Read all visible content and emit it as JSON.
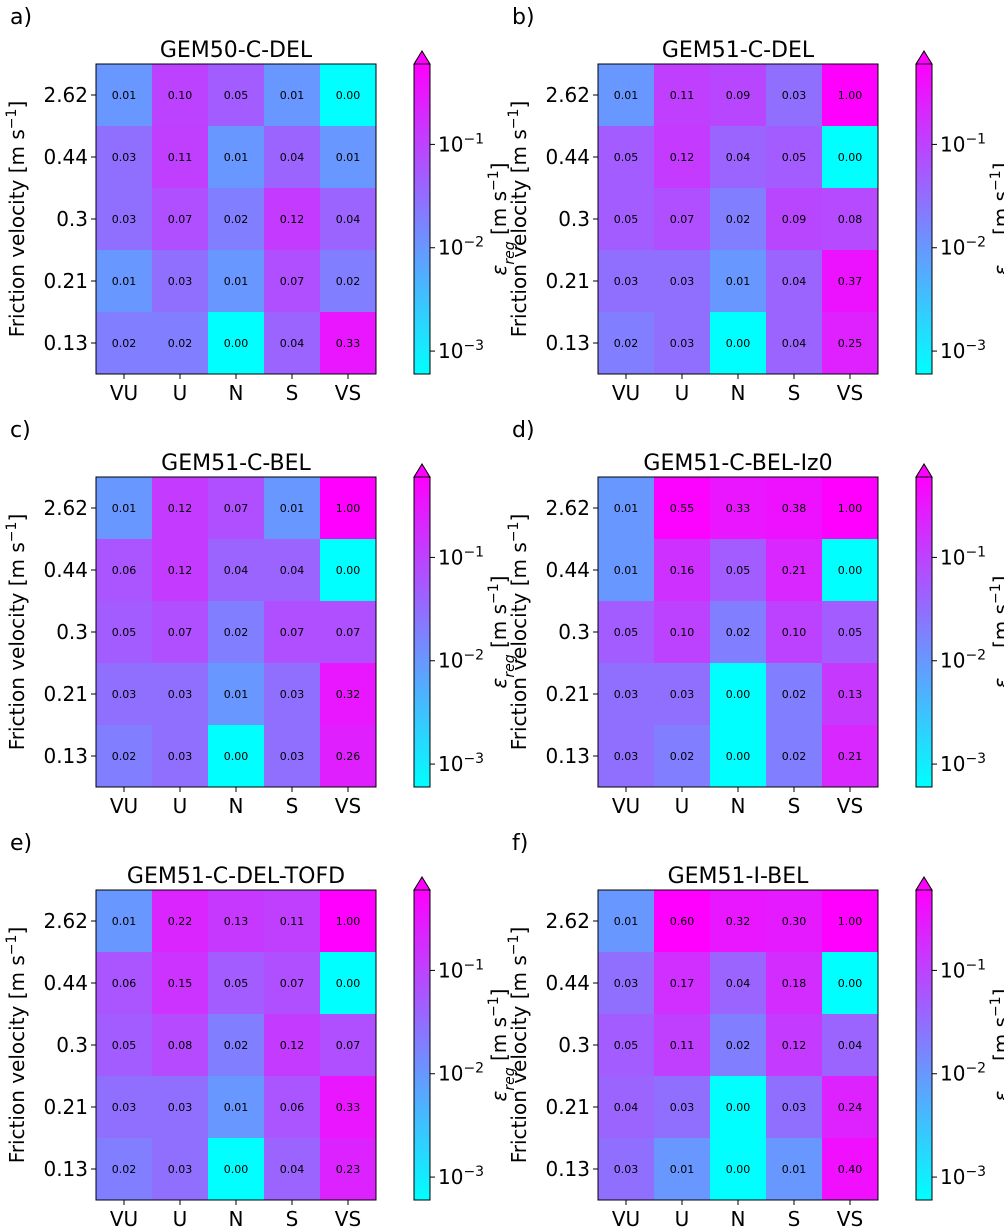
{
  "figure": {
    "rows": [
      "2.62",
      "0.44",
      "0.3",
      "0.21",
      "0.13"
    ],
    "columns": [
      "VU",
      "U",
      "N",
      "S",
      "VS"
    ],
    "ylabel_main": "Friction velocity [m s",
    "ylabel_sup": "−1",
    "ylabel_close": "]",
    "colorbar": {
      "scale": "log",
      "vmin": 0.0006,
      "vmax": 0.6,
      "extend": "max",
      "colormap": "cool",
      "color_low": "#00ffff",
      "color_high": "#ff00ff",
      "ticks": [
        {
          "value": 0.1,
          "base": "10",
          "exp": "−1"
        },
        {
          "value": 0.01,
          "base": "10",
          "exp": "−2"
        },
        {
          "value": 0.001,
          "base": "10",
          "exp": "−3"
        }
      ],
      "label_eps": "ε",
      "label_sub": "reg",
      "label_unit": " [m s",
      "label_sup": "−1",
      "label_close": "]"
    }
  },
  "chart_data": [
    {
      "type": "heatmap",
      "panel": "a)",
      "title": "GEM50-C-DEL",
      "values": [
        [
          0.01,
          0.1,
          0.05,
          0.01,
          0.0
        ],
        [
          0.03,
          0.11,
          0.01,
          0.04,
          0.01
        ],
        [
          0.03,
          0.07,
          0.02,
          0.12,
          0.04
        ],
        [
          0.01,
          0.03,
          0.01,
          0.07,
          0.02
        ],
        [
          0.02,
          0.02,
          0.0,
          0.04,
          0.33
        ]
      ]
    },
    {
      "type": "heatmap",
      "panel": "b)",
      "title": "GEM51-C-DEL",
      "values": [
        [
          0.01,
          0.11,
          0.09,
          0.03,
          1.0
        ],
        [
          0.05,
          0.12,
          0.04,
          0.05,
          0.0
        ],
        [
          0.05,
          0.07,
          0.02,
          0.09,
          0.08
        ],
        [
          0.03,
          0.03,
          0.01,
          0.04,
          0.37
        ],
        [
          0.02,
          0.03,
          0.0,
          0.04,
          0.25
        ]
      ]
    },
    {
      "type": "heatmap",
      "panel": "c)",
      "title": "GEM51-C-BEL",
      "values": [
        [
          0.01,
          0.12,
          0.07,
          0.01,
          1.0
        ],
        [
          0.06,
          0.12,
          0.04,
          0.04,
          0.0
        ],
        [
          0.05,
          0.07,
          0.02,
          0.07,
          0.07
        ],
        [
          0.03,
          0.03,
          0.01,
          0.03,
          0.32
        ],
        [
          0.02,
          0.03,
          0.0,
          0.03,
          0.26
        ]
      ]
    },
    {
      "type": "heatmap",
      "panel": "d)",
      "title": "GEM51-C-BEL-Iz0",
      "values": [
        [
          0.01,
          0.55,
          0.33,
          0.38,
          1.0
        ],
        [
          0.01,
          0.16,
          0.05,
          0.21,
          0.0
        ],
        [
          0.05,
          0.1,
          0.02,
          0.1,
          0.05
        ],
        [
          0.03,
          0.03,
          0.0,
          0.02,
          0.13
        ],
        [
          0.03,
          0.02,
          0.0,
          0.02,
          0.21
        ]
      ]
    },
    {
      "type": "heatmap",
      "panel": "e)",
      "title": "GEM51-C-DEL-TOFD",
      "values": [
        [
          0.01,
          0.22,
          0.13,
          0.11,
          1.0
        ],
        [
          0.06,
          0.15,
          0.05,
          0.07,
          0.0
        ],
        [
          0.05,
          0.08,
          0.02,
          0.12,
          0.07
        ],
        [
          0.03,
          0.03,
          0.01,
          0.06,
          0.33
        ],
        [
          0.02,
          0.03,
          0.0,
          0.04,
          0.23
        ]
      ]
    },
    {
      "type": "heatmap",
      "panel": "f)",
      "title": "GEM51-I-BEL",
      "values": [
        [
          0.01,
          0.6,
          0.32,
          0.3,
          1.0
        ],
        [
          0.03,
          0.17,
          0.04,
          0.18,
          0.0
        ],
        [
          0.05,
          0.11,
          0.02,
          0.12,
          0.04
        ],
        [
          0.04,
          0.03,
          0.0,
          0.03,
          0.24
        ],
        [
          0.03,
          0.01,
          0.0,
          0.01,
          0.4
        ]
      ]
    }
  ]
}
